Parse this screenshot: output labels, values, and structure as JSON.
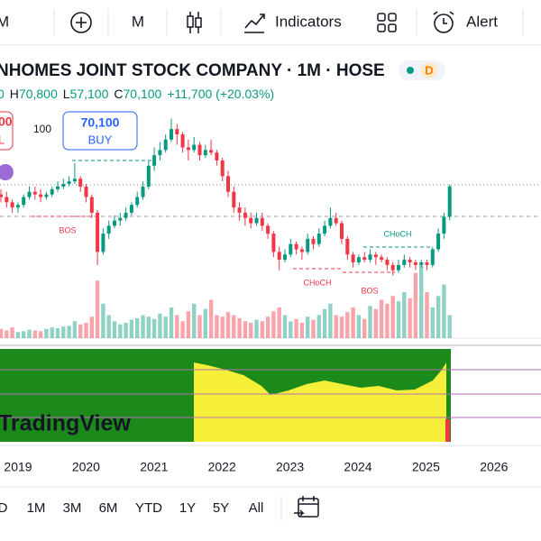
{
  "toolbar": {
    "interval_left": "M",
    "interval": "M",
    "indicators": "Indicators",
    "alert": "Alert"
  },
  "header": {
    "title": "NHOMES JOINT STOCK COMPANY · 1M · HOSE",
    "badge": "D",
    "open_fragment": "0",
    "ohlc": [
      {
        "label": "H",
        "value": "70,800"
      },
      {
        "label": "L",
        "value": "57,100"
      },
      {
        "label": "C",
        "value": "70,100"
      }
    ],
    "change": "+11,700 (+20.03%)"
  },
  "order_panel": {
    "sell_price_fragment": "00",
    "sell_label_fragment": "L",
    "quantity": "100",
    "buy_price": "70,100",
    "buy_label": "BUY"
  },
  "chart_data": {
    "type": "candlestick",
    "ylim": [
      12000,
      100000
    ],
    "volume_lim": [
      0,
      100
    ],
    "up_color": "#089981",
    "down_color": "#f23645",
    "candles": [
      [
        67000,
        69000,
        64000,
        66000
      ],
      [
        66000,
        68000,
        62000,
        64000
      ],
      [
        64000,
        65000,
        60000,
        62000
      ],
      [
        62000,
        64000,
        60000,
        63000
      ],
      [
        63000,
        67000,
        62000,
        66000
      ],
      [
        66000,
        70000,
        65000,
        68000
      ],
      [
        68000,
        70000,
        65000,
        67000
      ],
      [
        67000,
        69000,
        64000,
        66000
      ],
      [
        66000,
        68000,
        65000,
        67000
      ],
      [
        67000,
        70000,
        66000,
        69000
      ],
      [
        69000,
        72000,
        68000,
        70000
      ],
      [
        70000,
        73000,
        69000,
        71000
      ],
      [
        71000,
        74000,
        70000,
        72000
      ],
      [
        72000,
        79000,
        71000,
        73000
      ],
      [
        73000,
        74000,
        68000,
        70000
      ],
      [
        70000,
        71000,
        64000,
        66000
      ],
      [
        66000,
        67000,
        58000,
        60000
      ],
      [
        60000,
        61000,
        40000,
        45000
      ],
      [
        45000,
        54000,
        44000,
        52000
      ],
      [
        52000,
        57000,
        50000,
        55000
      ],
      [
        55000,
        59000,
        54000,
        57000
      ],
      [
        57000,
        60000,
        55000,
        58000
      ],
      [
        58000,
        62000,
        57000,
        60000
      ],
      [
        60000,
        64000,
        59000,
        63000
      ],
      [
        63000,
        68000,
        62000,
        66000
      ],
      [
        66000,
        72000,
        65000,
        70000
      ],
      [
        70000,
        80000,
        69000,
        78000
      ],
      [
        78000,
        85000,
        76000,
        82000
      ],
      [
        82000,
        87000,
        80000,
        84000
      ],
      [
        84000,
        90000,
        83000,
        88000
      ],
      [
        88000,
        96000,
        87000,
        92000
      ],
      [
        92000,
        94000,
        86000,
        90000
      ],
      [
        90000,
        91000,
        83000,
        85000
      ],
      [
        85000,
        88000,
        80000,
        84000
      ],
      [
        84000,
        89000,
        83000,
        86000
      ],
      [
        86000,
        87000,
        80000,
        82000
      ],
      [
        82000,
        86000,
        81000,
        84000
      ],
      [
        84000,
        88000,
        82000,
        83000
      ],
      [
        83000,
        84000,
        78000,
        80000
      ],
      [
        80000,
        81000,
        72000,
        74000
      ],
      [
        74000,
        76000,
        66000,
        68000
      ],
      [
        68000,
        70000,
        60000,
        62000
      ],
      [
        62000,
        64000,
        57000,
        60000
      ],
      [
        60000,
        62000,
        55000,
        58000
      ],
      [
        58000,
        60000,
        54000,
        56000
      ],
      [
        56000,
        60000,
        55000,
        58000
      ],
      [
        58000,
        60000,
        53000,
        55000
      ],
      [
        55000,
        56000,
        50000,
        52000
      ],
      [
        52000,
        53000,
        43000,
        45000
      ],
      [
        45000,
        47000,
        38000,
        42000
      ],
      [
        42000,
        46000,
        41000,
        44000
      ],
      [
        44000,
        50000,
        43000,
        48000
      ],
      [
        48000,
        49000,
        44000,
        46000
      ],
      [
        46000,
        47000,
        42000,
        45000
      ],
      [
        45000,
        52000,
        44000,
        50000
      ],
      [
        50000,
        51000,
        46000,
        48000
      ],
      [
        48000,
        54000,
        47000,
        52000
      ],
      [
        52000,
        57000,
        51000,
        55000
      ],
      [
        55000,
        62000,
        54000,
        58000
      ],
      [
        58000,
        60000,
        55000,
        56000
      ],
      [
        56000,
        57000,
        48000,
        50000
      ],
      [
        50000,
        51000,
        42000,
        44000
      ],
      [
        44000,
        45000,
        39000,
        41000
      ],
      [
        41000,
        44000,
        40000,
        43000
      ],
      [
        43000,
        45000,
        41000,
        42000
      ],
      [
        42000,
        46000,
        41000,
        44000
      ],
      [
        44000,
        45000,
        40000,
        43000
      ],
      [
        43000,
        44000,
        41000,
        42000
      ],
      [
        42000,
        43000,
        38000,
        40000
      ],
      [
        40000,
        41000,
        36000,
        38000
      ],
      [
        38000,
        42000,
        37000,
        40000
      ],
      [
        40000,
        44000,
        39000,
        42000
      ],
      [
        42000,
        43000,
        39000,
        41000
      ],
      [
        41000,
        42000,
        38000,
        40000
      ],
      [
        40000,
        42000,
        39000,
        41000
      ],
      [
        41000,
        42000,
        38000,
        40000
      ],
      [
        40000,
        47000,
        39000,
        46000
      ],
      [
        46000,
        54000,
        45000,
        52000
      ],
      [
        52000,
        60000,
        50000,
        58400
      ],
      [
        58400,
        70800,
        57100,
        70100
      ]
    ],
    "volumes": [
      12,
      10,
      14,
      8,
      9,
      11,
      10,
      9,
      12,
      14,
      13,
      15,
      16,
      22,
      18,
      20,
      28,
      75,
      45,
      30,
      22,
      18,
      20,
      24,
      26,
      30,
      28,
      25,
      32,
      28,
      40,
      30,
      22,
      35,
      45,
      30,
      38,
      50,
      30,
      28,
      34,
      30,
      26,
      22,
      20,
      24,
      22,
      28,
      35,
      40,
      30,
      22,
      25,
      20,
      28,
      24,
      30,
      38,
      45,
      30,
      28,
      34,
      40,
      30,
      25,
      42,
      38,
      50,
      45,
      55,
      48,
      60,
      52,
      85,
      95,
      60,
      40,
      55,
      70,
      30
    ],
    "annotations": [
      {
        "text": "BOS",
        "color": "#f23645"
      },
      {
        "text": "CHoCH",
        "color": "#f23645"
      },
      {
        "text": "BOS",
        "color": "#f23645"
      },
      {
        "text": "CHoCH",
        "color": "#089981"
      }
    ],
    "time_labels": [
      "2019",
      "2020",
      "2021",
      "2022",
      "2023",
      "2024",
      "2025",
      "2026"
    ]
  },
  "watermark": "TradingView",
  "ranges": [
    "D",
    "1M",
    "3M",
    "6M",
    "YTD",
    "1Y",
    "5Y",
    "All"
  ]
}
